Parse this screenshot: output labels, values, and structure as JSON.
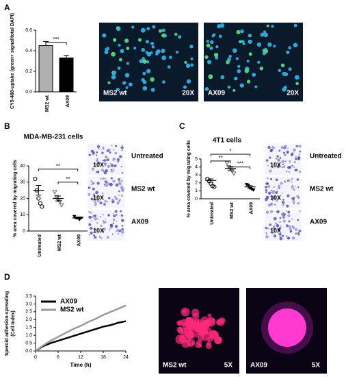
{
  "chart_data": [
    {
      "type": "bar",
      "y_label": "CY5-488-uptake (green+ signal/total DAPI)",
      "categories": [
        "MS2 wt",
        "AX09"
      ],
      "values": [
        0.45,
        0.33
      ],
      "errors": [
        0.04,
        0.025
      ],
      "colors": [
        "#b0b0b0",
        "#000000"
      ],
      "ylim": [
        0,
        0.6
      ],
      "yticks": [
        {
          "value": 0,
          "label": "0.0"
        },
        0.2,
        0.4,
        0.6
      ],
      "annotations": [
        "***"
      ]
    },
    {
      "type": "dot",
      "title": "MDA-MB-231 cells",
      "y_label": "% area covered by migrating cells",
      "categories": [
        "Untreated",
        "MS2 wt",
        "AX09"
      ],
      "points": [
        [
          32,
          25,
          20,
          17,
          15
        ],
        [
          24,
          21,
          19,
          18,
          16
        ],
        [
          9,
          8,
          8,
          7,
          8
        ]
      ],
      "means": [
        25,
        20,
        8
      ],
      "errors": [
        3,
        1.5,
        0.4
      ],
      "ylim": [
        0,
        40
      ],
      "yticks": [
        0,
        10,
        20,
        30,
        40
      ],
      "annotations": [
        "**",
        "**"
      ]
    },
    {
      "type": "dot",
      "title": "4T1 cells",
      "y_label": "% area covered by migrating cells",
      "categories": [
        "Untreated",
        "MS2 wt",
        "AX09"
      ],
      "points": [
        [
          2.5,
          2.2,
          1.9,
          1.6,
          1.5
        ],
        [
          4.5,
          4.0,
          3.8,
          3.5,
          3.2
        ],
        [
          1.8,
          1.7,
          1.3,
          1.2,
          1.1
        ]
      ],
      "means": [
        2.3,
        3.8,
        1.5
      ],
      "errors": [
        0.2,
        0.25,
        0.15
      ],
      "ylim": [
        0,
        5
      ],
      "yticks": [
        0,
        1,
        2,
        3,
        4,
        5
      ],
      "annotations": [
        "*",
        "**",
        "***"
      ]
    },
    {
      "type": "line",
      "y_label": [
        "Speroid adhesion-spreading",
        "(Cell Index)"
      ],
      "x_label": "Time (h)",
      "x": [
        0,
        2,
        4,
        6,
        8,
        10,
        12,
        14,
        16,
        18,
        20,
        22,
        24
      ],
      "series": [
        {
          "name": "AX09",
          "color": "#000000",
          "values": [
            0,
            0.3,
            0.5,
            0.65,
            0.8,
            0.95,
            1.1,
            1.25,
            1.4,
            1.55,
            1.65,
            1.8,
            1.9
          ]
        },
        {
          "name": "MS2 wt",
          "color": "#999999",
          "values": [
            0,
            0.35,
            0.65,
            0.9,
            1.15,
            1.4,
            1.6,
            1.85,
            2.05,
            2.3,
            2.5,
            2.7,
            2.9
          ]
        }
      ],
      "xlim": [
        0,
        24
      ],
      "xticks": [
        0,
        6,
        12,
        18,
        24
      ],
      "ylim": [
        0,
        3.5
      ],
      "yticks": [
        {
          "value": 0,
          "label": "0.0"
        },
        0.5,
        {
          "value": 1,
          "label": "1.0"
        },
        1.5,
        {
          "value": 2,
          "label": "2.0"
        },
        2.5,
        {
          "value": 3,
          "label": "3.0"
        },
        3.5
      ],
      "legend": "upper left"
    }
  ],
  "panel_letters": [
    "A",
    "B",
    "C",
    "D"
  ],
  "image_labels": {
    "A": [
      [
        "MS2 wt",
        "20X"
      ],
      [
        "AX09",
        "20X"
      ]
    ],
    "B": {
      "magnification": [
        "10X",
        "10X",
        "10X"
      ],
      "rows": [
        "Untreated",
        "MS2 wt",
        "AX09"
      ]
    },
    "C": {
      "magnification": [
        "10X",
        "10X",
        "10X"
      ],
      "rows": [
        "Untreated",
        "MS2 wt",
        "AX09"
      ]
    },
    "D": [
      [
        "MS2 wt",
        "5X"
      ],
      [
        "AX09",
        "5X"
      ]
    ]
  }
}
